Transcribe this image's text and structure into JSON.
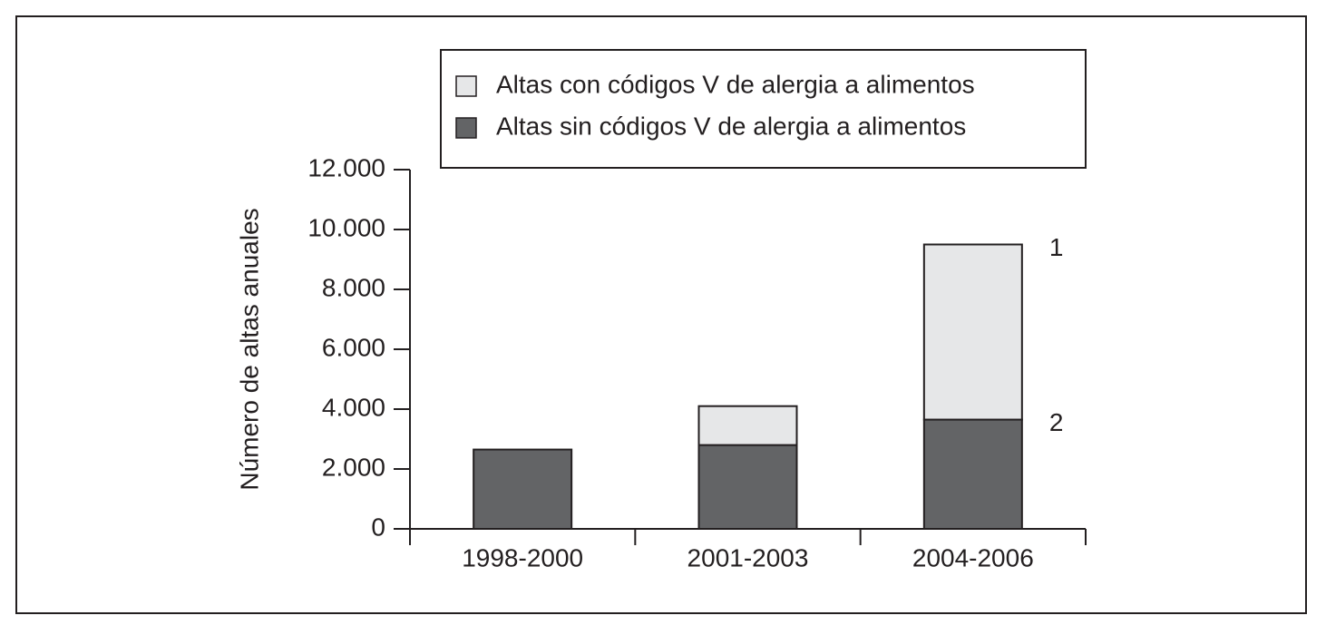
{
  "chart_data": {
    "type": "stacked_bar",
    "ylabel": "Número de altas anuales",
    "categories": [
      "1998-2000",
      "2001-2003",
      "2004-2006"
    ],
    "series": [
      {
        "name": "Altas con códigos V de alergia a alimentos",
        "color": "#e6e7e8",
        "values": [
          0,
          1300,
          5850
        ]
      },
      {
        "name": "Altas sin códigos V de alergia a alimentos",
        "color": "#636466",
        "values": [
          2650,
          2800,
          3650
        ]
      }
    ],
    "ylim": [
      0,
      12000
    ],
    "yticks": [
      0,
      {
        "value": 2000,
        "label": "2.000"
      },
      {
        "value": 4000,
        "label": "4.000"
      },
      {
        "value": 6000,
        "label": "6.000"
      },
      {
        "value": 8000,
        "label": "8.000"
      },
      {
        "value": 10000,
        "label": "10.000"
      },
      {
        "value": 12000,
        "label": "12.000"
      }
    ],
    "annotations": [
      "1",
      "2"
    ],
    "legend": "top"
  }
}
